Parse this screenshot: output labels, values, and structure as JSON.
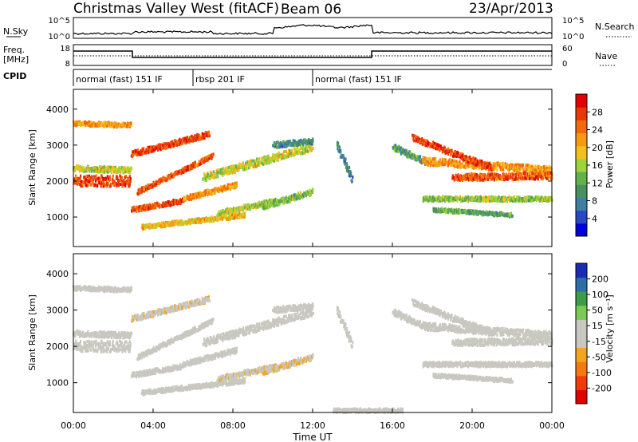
{
  "header": {
    "title": "Christmas Valley West (fitACF)",
    "beam": "Beam 06",
    "date": "23/Apr/2013"
  },
  "sky_panel": {
    "label": "N.Sky",
    "right_label": "N.Search",
    "y_ticks": [
      "10^5",
      "10^0"
    ],
    "right_ticks": [
      "10^5",
      "10^0"
    ]
  },
  "freq_panel": {
    "label_line1": "Freq.",
    "label_line2": "[MHz]",
    "right_label": "Nave",
    "y_ticks": [
      "18",
      "8"
    ],
    "right_ticks": [
      "60",
      "0"
    ]
  },
  "cpid": {
    "label": "CPID",
    "segments": [
      {
        "label": "normal (fast) 151 IF",
        "start_hour": 0,
        "end_hour": 6
      },
      {
        "label": "rbsp 201 IF",
        "start_hour": 6,
        "end_hour": 12
      },
      {
        "label": "normal (fast) 151 IF",
        "start_hour": 12,
        "end_hour": 24
      }
    ]
  },
  "x_axis": {
    "title": "Time UT",
    "ticks": [
      "00:00",
      "04:00",
      "08:00",
      "12:00",
      "16:00",
      "20:00",
      "00:00"
    ],
    "tick_hours": [
      0,
      4,
      8,
      12,
      16,
      20,
      24
    ]
  },
  "chart_data": [
    {
      "type": "heatmap",
      "name": "power",
      "ylabel": "Slant Range [km]",
      "ylim": [
        180,
        4550
      ],
      "xlim": [
        0,
        24
      ],
      "y_ticks": [
        "4000",
        "3000",
        "2000",
        "1000"
      ],
      "y_tick_values": [
        4000,
        3000,
        2000,
        1000
      ],
      "colorbar": {
        "label": "Power [dB]",
        "range": [
          0,
          32
        ],
        "ticks": [
          "28",
          "24",
          "20",
          "16",
          "12",
          "8",
          "4"
        ],
        "tick_values": [
          28,
          24,
          20,
          16,
          12,
          8,
          4
        ],
        "colors": [
          "#0000d8",
          "#2848c8",
          "#3f7f9f",
          "#4a8f5e",
          "#63b04c",
          "#9ed43b",
          "#f3c21a",
          "#f79a10",
          "#f26a0c",
          "#e63808",
          "#e40000"
        ]
      },
      "bands": [
        {
          "t0": 0.0,
          "t1": 2.9,
          "r0": 2000,
          "r1": 2000,
          "width": 300,
          "value": 27
        },
        {
          "t0": 0.0,
          "t1": 2.9,
          "r0": 3600,
          "r1": 3550,
          "width": 120,
          "value": 22
        },
        {
          "t0": 0.0,
          "t1": 2.9,
          "r0": 2350,
          "r1": 2300,
          "width": 150,
          "value": 17
        },
        {
          "t0": 2.9,
          "t1": 5.5,
          "r0": 1200,
          "r1": 1450,
          "width": 130,
          "value": 27
        },
        {
          "t0": 5.5,
          "t1": 8.2,
          "r0": 1500,
          "r1": 1900,
          "width": 140,
          "value": 22
        },
        {
          "t0": 2.9,
          "t1": 6.8,
          "r0": 2750,
          "r1": 3300,
          "width": 150,
          "value": 27
        },
        {
          "t0": 3.2,
          "t1": 7.0,
          "r0": 1700,
          "r1": 2700,
          "width": 120,
          "value": 26
        },
        {
          "t0": 3.4,
          "t1": 8.6,
          "r0": 720,
          "r1": 1050,
          "width": 120,
          "value": 20
        },
        {
          "t0": 7.2,
          "t1": 10.2,
          "r0": 1100,
          "r1": 1450,
          "width": 140,
          "value": 16
        },
        {
          "t0": 6.5,
          "t1": 12.0,
          "r0": 2100,
          "r1": 2950,
          "width": 200,
          "value": 17
        },
        {
          "t0": 9.5,
          "t1": 12.0,
          "r0": 1300,
          "r1": 1700,
          "width": 160,
          "value": 14
        },
        {
          "t0": 10.0,
          "t1": 12.0,
          "r0": 3000,
          "r1": 3100,
          "width": 150,
          "value": 9
        },
        {
          "t0": 13.2,
          "t1": 14.0,
          "r0": 3000,
          "r1": 2000,
          "width": 220,
          "value": 8
        },
        {
          "t0": 16.0,
          "t1": 17.8,
          "r0": 2950,
          "r1": 2500,
          "width": 180,
          "value": 11
        },
        {
          "t0": 17.5,
          "t1": 24.0,
          "r0": 2550,
          "r1": 2300,
          "width": 200,
          "value": 22
        },
        {
          "t0": 17.0,
          "t1": 21.0,
          "r0": 3200,
          "r1": 2350,
          "width": 160,
          "value": 27
        },
        {
          "t0": 19.0,
          "t1": 24.0,
          "r0": 2100,
          "r1": 2150,
          "width": 180,
          "value": 26
        },
        {
          "t0": 17.5,
          "t1": 24.0,
          "r0": 1500,
          "r1": 1500,
          "width": 120,
          "value": 15
        },
        {
          "t0": 18.0,
          "t1": 22.0,
          "r0": 1200,
          "r1": 1050,
          "width": 100,
          "value": 12
        }
      ]
    },
    {
      "type": "heatmap",
      "name": "velocity",
      "ylabel": "Slant Range [km]",
      "ylim": [
        180,
        4550
      ],
      "xlim": [
        0,
        24
      ],
      "y_ticks": [
        "4000",
        "3000",
        "2000",
        "1000"
      ],
      "y_tick_values": [
        4000,
        3000,
        2000,
        1000
      ],
      "colorbar": {
        "label": "Velocity [m s⁻¹]",
        "range": [
          -250,
          250
        ],
        "ticks": [
          "200",
          "100",
          "50",
          "15",
          "-15",
          "-50",
          "-100",
          "-200"
        ],
        "colors": [
          "#e00000",
          "#f03c0a",
          "#f37a10",
          "#f3a51e",
          "#c8c8c0",
          "#c8c8c0",
          "#7bc957",
          "#3b9c4a",
          "#2e6ea8",
          "#1c2bb6"
        ]
      },
      "bands": [
        {
          "t0": 0.0,
          "t1": 2.9,
          "r0": 2000,
          "r1": 2000,
          "width": 300,
          "value": 0
        },
        {
          "t0": 0.0,
          "t1": 2.9,
          "r0": 3600,
          "r1": 3550,
          "width": 120,
          "value": 0
        },
        {
          "t0": 0.0,
          "t1": 2.9,
          "r0": 2350,
          "r1": 2300,
          "width": 150,
          "value": 0
        },
        {
          "t0": 2.9,
          "t1": 5.5,
          "r0": 1200,
          "r1": 1450,
          "width": 130,
          "value": 0
        },
        {
          "t0": 5.5,
          "t1": 8.2,
          "r0": 1500,
          "r1": 1900,
          "width": 140,
          "value": 0
        },
        {
          "t0": 2.9,
          "t1": 6.8,
          "r0": 2750,
          "r1": 3300,
          "width": 150,
          "value": -40
        },
        {
          "t0": 3.2,
          "t1": 7.0,
          "r0": 1700,
          "r1": 2700,
          "width": 120,
          "value": -30
        },
        {
          "t0": 3.4,
          "t1": 8.6,
          "r0": 720,
          "r1": 1050,
          "width": 120,
          "value": 0
        },
        {
          "t0": 7.2,
          "t1": 10.2,
          "r0": 1100,
          "r1": 1450,
          "width": 140,
          "value": -40
        },
        {
          "t0": 6.5,
          "t1": 12.0,
          "r0": 2100,
          "r1": 2950,
          "width": 200,
          "value": 0
        },
        {
          "t0": 9.5,
          "t1": 12.0,
          "r0": 1300,
          "r1": 1700,
          "width": 160,
          "value": -45
        },
        {
          "t0": 10.0,
          "t1": 12.0,
          "r0": 3000,
          "r1": 3100,
          "width": 150,
          "value": 0
        },
        {
          "t0": 13.2,
          "t1": 14.0,
          "r0": 3000,
          "r1": 2000,
          "width": 220,
          "value": 30
        },
        {
          "t0": 16.0,
          "t1": 17.8,
          "r0": 2950,
          "r1": 2500,
          "width": 180,
          "value": 0
        },
        {
          "t0": 17.5,
          "t1": 24.0,
          "r0": 2550,
          "r1": 2300,
          "width": 200,
          "value": 0
        },
        {
          "t0": 17.0,
          "t1": 21.0,
          "r0": 3200,
          "r1": 2350,
          "width": 160,
          "value": 0
        },
        {
          "t0": 19.0,
          "t1": 24.0,
          "r0": 2100,
          "r1": 2150,
          "width": 180,
          "value": 0
        },
        {
          "t0": 17.5,
          "t1": 24.0,
          "r0": 1500,
          "r1": 1500,
          "width": 120,
          "value": 0
        },
        {
          "t0": 18.0,
          "t1": 22.0,
          "r0": 1200,
          "r1": 1050,
          "width": 100,
          "value": 0
        },
        {
          "t0": 13.0,
          "t1": 16.5,
          "r0": 230,
          "r1": 230,
          "width": 100,
          "value": 30
        }
      ]
    }
  ],
  "colors": {
    "sky_trace": "#000000",
    "frequency_trace": "#000000"
  }
}
